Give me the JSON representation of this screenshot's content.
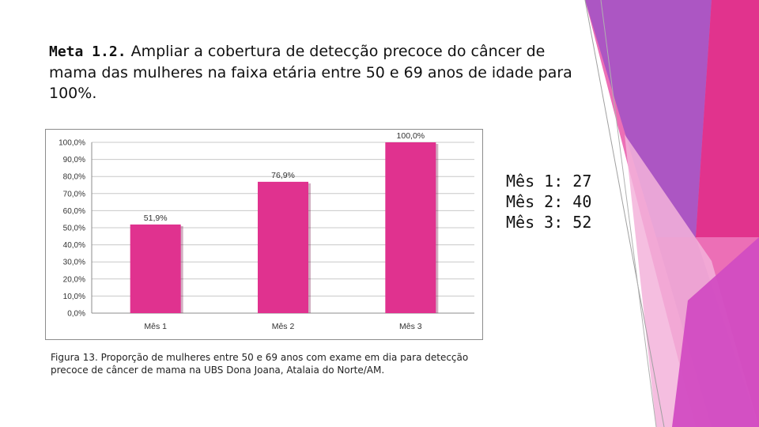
{
  "slide": {
    "title_bold": "Meta 1.2.",
    "title_text": " Ampliar a cobertura de detecção precoce do câncer de mama das mulheres na faixa etária entre 50 e 69 anos de idade para 100%.",
    "side_values": [
      "Mês 1: 27",
      "Mês 2: 40",
      "Mês 3: 52"
    ],
    "caption": "Figura 13. Proporção de mulheres entre 50 e 69 anos com exame em dia para detecção precoce de câncer de mama na UBS Dona Joana, Atalaia do Norte/AM."
  },
  "colors": {
    "bar": "#e0328f",
    "grid": "#c8c8c8",
    "deco_dark": "#9b3fb5",
    "deco_pink": "#e8389a",
    "deco_light": "#f2a9d6"
  },
  "chart_data": {
    "type": "bar",
    "categories": [
      "Mês 1",
      "Mês 2",
      "Mês 3"
    ],
    "values": [
      51.9,
      76.9,
      100.0
    ],
    "data_labels": [
      "51,9%",
      "76,9%",
      "100,0%"
    ],
    "yticks": [
      "0,0%",
      "10,0%",
      "20,0%",
      "30,0%",
      "40,0%",
      "50,0%",
      "60,0%",
      "70,0%",
      "80,0%",
      "90,0%",
      "100,0%"
    ],
    "ylim": [
      0,
      100
    ],
    "title": "",
    "xlabel": "",
    "ylabel": "",
    "grid": true,
    "legend": "none"
  }
}
